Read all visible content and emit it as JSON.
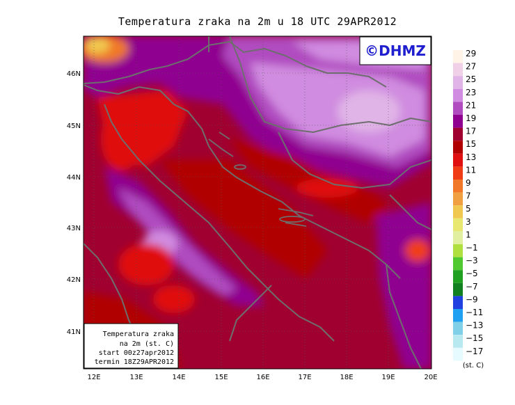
{
  "title": "Temperatura zraka na 2m u 18 UTC 29APR2012",
  "logo": "©DHMZ",
  "lon_ticks": [
    "12E",
    "13E",
    "14E",
    "15E",
    "16E",
    "17E",
    "18E",
    "19E",
    "20E"
  ],
  "lat_ticks": [
    "46N",
    "45N",
    "44N",
    "43N",
    "42N",
    "41N"
  ],
  "info_box": [
    "Temperatura zraka",
    "na 2m (st. C)",
    "start 00z27apr2012",
    "termin 18Z29APR2012"
  ],
  "legend": {
    "unit": "(st. C)",
    "labels": [
      "29",
      "27",
      "25",
      "23",
      "21",
      "19",
      "17",
      "15",
      "13",
      "11",
      "9",
      "7",
      "5",
      "3",
      "1",
      "−1",
      "−3",
      "−5",
      "−7",
      "−9",
      "−11",
      "−13",
      "−15",
      "−17"
    ],
    "colors": [
      "#fff2e6",
      "#f0d0e6",
      "#e0b4e6",
      "#d08ce0",
      "#b04cc0",
      "#900090",
      "#a00030",
      "#b00000",
      "#e01010",
      "#f03c14",
      "#f07828",
      "#f0a040",
      "#f0c850",
      "#e8e870",
      "#e0f0a0",
      "#b0e040",
      "#50c830",
      "#20a020",
      "#108020",
      "#2040e0",
      "#20a0f0",
      "#80d0e8",
      "#b8e8f0",
      "#e6fbff"
    ]
  }
}
